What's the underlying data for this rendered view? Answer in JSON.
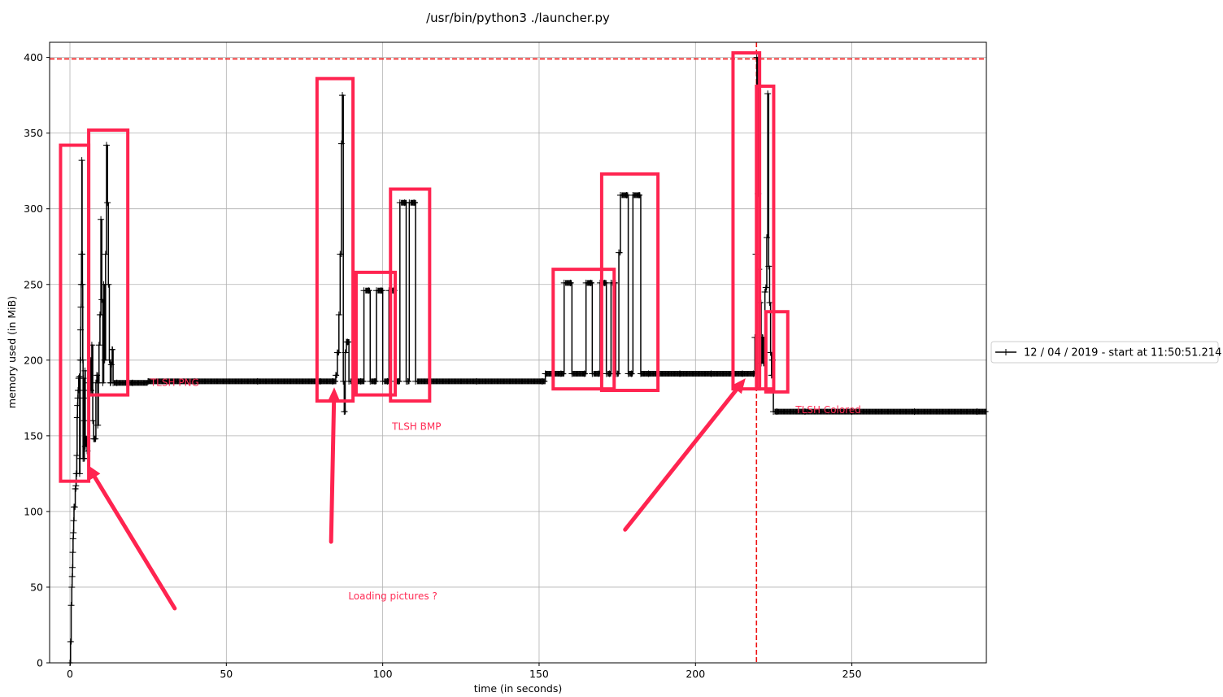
{
  "chart_data": {
    "type": "line",
    "title": "/usr/bin/python3 ./launcher.py",
    "xlabel": "time (in seconds)",
    "ylabel": "memory used (in MiB)",
    "xlim": [
      -6.5,
      293
    ],
    "ylim": [
      0,
      410
    ],
    "xticks": [
      0,
      50,
      100,
      150,
      200,
      250
    ],
    "yticks": [
      0,
      50,
      100,
      150,
      200,
      250,
      300,
      350,
      400
    ],
    "grid": true,
    "legend_position": "outside-right",
    "series": [
      {
        "name": "12 / 04 / 2019 - start at 11:50:51.214",
        "color": "#000000",
        "marker": "+",
        "points": [
          [
            0.0,
            0
          ],
          [
            0.2,
            14
          ],
          [
            0.4,
            38
          ],
          [
            0.6,
            50
          ],
          [
            0.7,
            57
          ],
          [
            0.8,
            63
          ],
          [
            0.9,
            73
          ],
          [
            1.0,
            82
          ],
          [
            1.1,
            86
          ],
          [
            1.2,
            94
          ],
          [
            1.3,
            103
          ],
          [
            1.5,
            103
          ],
          [
            1.7,
            115
          ],
          [
            1.9,
            117
          ],
          [
            2.0,
            125
          ],
          [
            2.2,
            137
          ],
          [
            2.3,
            162
          ],
          [
            2.4,
            170
          ],
          [
            2.5,
            175
          ],
          [
            2.6,
            180
          ],
          [
            2.8,
            188
          ],
          [
            3.0,
            189
          ],
          [
            3.1,
            125
          ],
          [
            3.2,
            135
          ],
          [
            3.3,
            200
          ],
          [
            3.4,
            220
          ],
          [
            3.5,
            235
          ],
          [
            3.6,
            250
          ],
          [
            3.7,
            270
          ],
          [
            3.8,
            332
          ],
          [
            3.9,
            270
          ],
          [
            4.0,
            250
          ],
          [
            4.1,
            200
          ],
          [
            4.2,
            135
          ],
          [
            4.3,
            188
          ],
          [
            4.4,
            175
          ],
          [
            4.5,
            135
          ],
          [
            4.6,
            160
          ],
          [
            4.7,
            180
          ],
          [
            4.8,
            193
          ],
          [
            4.9,
            143
          ],
          [
            5.2,
            148
          ],
          [
            5.5,
            140
          ],
          [
            6.0,
            185
          ],
          [
            6.4,
            200
          ],
          [
            6.7,
            180
          ],
          [
            7.0,
            210
          ],
          [
            7.3,
            160
          ],
          [
            7.6,
            148
          ],
          [
            7.9,
            148
          ],
          [
            8.1,
            148
          ],
          [
            8.3,
            185
          ],
          [
            8.6,
            190
          ],
          [
            8.9,
            157
          ],
          [
            9.1,
            185
          ],
          [
            9.3,
            210
          ],
          [
            9.6,
            230
          ],
          [
            9.9,
            293
          ],
          [
            10.2,
            240
          ],
          [
            10.5,
            185
          ],
          [
            10.8,
            250
          ],
          [
            11.1,
            200
          ],
          [
            11.4,
            270
          ],
          [
            11.7,
            342
          ],
          [
            12.0,
            304
          ],
          [
            12.3,
            250
          ],
          [
            12.6,
            200
          ],
          [
            12.9,
            185
          ],
          [
            13.2,
            197
          ],
          [
            13.5,
            207
          ],
          [
            13.8,
            185
          ],
          [
            15,
            185
          ],
          [
            20,
            185
          ],
          [
            25,
            186
          ],
          [
            40,
            186
          ],
          [
            60,
            186
          ],
          [
            80,
            186
          ],
          [
            84,
            186
          ],
          [
            85,
            190
          ],
          [
            85.5,
            205
          ],
          [
            86,
            230
          ],
          [
            86.4,
            270
          ],
          [
            86.8,
            343
          ],
          [
            87.1,
            375
          ],
          [
            87.4,
            186
          ],
          [
            87.7,
            166
          ],
          [
            88.0,
            205
          ],
          [
            88.4,
            212
          ],
          [
            88.8,
            212
          ],
          [
            89.2,
            186
          ],
          [
            93,
            186
          ],
          [
            94,
            246
          ],
          [
            95.5,
            246
          ],
          [
            96,
            186
          ],
          [
            97.5,
            186
          ],
          [
            98,
            246
          ],
          [
            99.5,
            246
          ],
          [
            100,
            186
          ],
          [
            101.5,
            186
          ],
          [
            102,
            246
          ],
          [
            103.5,
            246
          ],
          [
            104,
            186
          ],
          [
            105,
            186
          ],
          [
            105.5,
            304
          ],
          [
            107,
            304
          ],
          [
            107.5,
            186
          ],
          [
            108,
            186
          ],
          [
            108.5,
            304
          ],
          [
            110,
            304
          ],
          [
            110.5,
            186
          ],
          [
            115,
            186
          ],
          [
            130,
            186
          ],
          [
            151,
            186
          ],
          [
            152,
            191
          ],
          [
            157,
            191
          ],
          [
            158,
            251
          ],
          [
            160,
            251
          ],
          [
            160.5,
            191
          ],
          [
            164.5,
            191
          ],
          [
            165,
            251
          ],
          [
            166.5,
            251
          ],
          [
            167,
            191
          ],
          [
            169,
            191
          ],
          [
            169.5,
            251
          ],
          [
            171,
            251
          ],
          [
            171.5,
            191
          ],
          [
            172.5,
            191
          ],
          [
            173,
            251
          ],
          [
            174,
            251
          ],
          [
            174.5,
            191
          ],
          [
            175,
            191
          ],
          [
            175.5,
            271
          ],
          [
            176,
            309
          ],
          [
            178,
            309
          ],
          [
            178.5,
            191
          ],
          [
            179.5,
            191
          ],
          [
            180,
            309
          ],
          [
            182,
            309
          ],
          [
            182.5,
            191
          ],
          [
            185,
            191
          ],
          [
            195,
            191
          ],
          [
            205,
            191
          ],
          [
            215,
            191
          ],
          [
            218.5,
            191
          ],
          [
            219,
            215
          ],
          [
            219.3,
            270
          ],
          [
            219.6,
            400
          ],
          [
            220,
            310
          ],
          [
            220.3,
            260
          ],
          [
            220.6,
            238
          ],
          [
            221,
            198
          ],
          [
            221.4,
            215
          ],
          [
            221.8,
            198
          ],
          [
            222.2,
            245
          ],
          [
            222.5,
            248
          ],
          [
            222.8,
            281
          ],
          [
            223.1,
            376
          ],
          [
            223.4,
            262
          ],
          [
            223.7,
            238
          ],
          [
            224.0,
            205
          ],
          [
            224.3,
            190
          ],
          [
            224.6,
            200
          ],
          [
            224.9,
            166
          ],
          [
            226,
            166
          ],
          [
            235,
            166
          ],
          [
            250,
            166
          ],
          [
            270,
            166
          ],
          [
            290,
            166
          ]
        ]
      }
    ],
    "reference_lines": [
      {
        "orientation": "horizontal",
        "value": 399,
        "color": "#ee1111",
        "style": "dashed"
      },
      {
        "orientation": "vertical",
        "value": 219.5,
        "color": "#ee1111",
        "style": "dashed"
      }
    ],
    "annotations": [
      {
        "text": "TLSH PNG",
        "x": 25.7,
        "y": 185,
        "color": "#ff2c55"
      },
      {
        "text": "TLSH BMP",
        "x": 103,
        "y": 156,
        "color": "#ff2c55"
      },
      {
        "text": "TLSH Colored",
        "x": 232,
        "y": 167,
        "color": "#ff2c55"
      },
      {
        "text": "Loading pictures ?",
        "x": 89,
        "y": 44,
        "color": "#ff2c55"
      }
    ],
    "highlight_boxes": [
      {
        "x0": -3,
        "x1": 6,
        "y0": 120,
        "y1": 342
      },
      {
        "x0": 6,
        "x1": 18.5,
        "y0": 177,
        "y1": 352
      },
      {
        "x0": 79,
        "x1": 90.5,
        "y0": 173,
        "y1": 386
      },
      {
        "x0": 91.5,
        "x1": 104,
        "y0": 177,
        "y1": 258
      },
      {
        "x0": 102.5,
        "x1": 115,
        "y0": 173,
        "y1": 313
      },
      {
        "x0": 154.5,
        "x1": 174,
        "y0": 181,
        "y1": 260
      },
      {
        "x0": 170,
        "x1": 188,
        "y0": 180,
        "y1": 323
      },
      {
        "x0": 212,
        "x1": 220.5,
        "y0": 181,
        "y1": 403
      },
      {
        "x0": 219.5,
        "x1": 225,
        "y0": 181,
        "y1": 381
      },
      {
        "x0": 222.5,
        "x1": 229.5,
        "y0": 179,
        "y1": 232
      }
    ],
    "arrows": [
      {
        "from": [
          33.5,
          36
        ],
        "to": [
          5.5,
          131
        ]
      },
      {
        "from": [
          83.5,
          80
        ],
        "to": [
          84.5,
          182
        ]
      },
      {
        "from": [
          177.5,
          88
        ],
        "to": [
          216,
          188
        ]
      }
    ],
    "highlight_color": "#ff2450"
  }
}
